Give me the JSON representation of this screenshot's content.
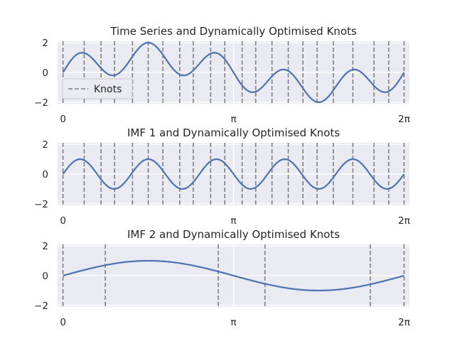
{
  "chart_data": [
    {
      "type": "line",
      "title": "Time Series and Dynamically Optimised Knots",
      "xlabel": "",
      "ylabel": "",
      "xlim": [
        -0.1,
        6.3832
      ],
      "ylim": [
        -2.1,
        2.1
      ],
      "xticks": [
        {
          "value": 0,
          "label": "0"
        },
        {
          "value": 3.1416,
          "label": "π"
        },
        {
          "value": 6.2832,
          "label": "2π"
        }
      ],
      "yticks": [
        {
          "value": 2,
          "label": "2"
        },
        {
          "value": 0,
          "label": "0"
        },
        {
          "value": -2,
          "label": "−2"
        }
      ],
      "signal": "sin(5x) + sin(x)",
      "x_samples": 401,
      "series": [
        {
          "name": "",
          "color": "#4c72b0"
        }
      ],
      "knots": [
        0.0,
        0.39,
        0.7,
        0.95,
        1.28,
        1.57,
        1.84,
        2.15,
        2.4,
        2.72,
        2.98,
        3.3,
        3.55,
        3.85,
        4.15,
        4.42,
        4.68,
        4.98,
        5.34,
        5.73,
        6.0,
        6.2832
      ],
      "knot_color": "#7f7f7f",
      "legend": {
        "label": "Knots",
        "placement": "lower left"
      },
      "grid": true,
      "background": "#eaeaf2"
    },
    {
      "type": "line",
      "title": "IMF 1 and Dynamically Optimised Knots",
      "xlabel": "",
      "ylabel": "",
      "xlim": [
        -0.1,
        6.3832
      ],
      "ylim": [
        -2.1,
        2.1
      ],
      "xticks": [
        {
          "value": 0,
          "label": "0"
        },
        {
          "value": 3.1416,
          "label": "π"
        },
        {
          "value": 6.2832,
          "label": "2π"
        }
      ],
      "yticks": [
        {
          "value": 2,
          "label": "2"
        },
        {
          "value": 0,
          "label": "0"
        },
        {
          "value": -2,
          "label": "−2"
        }
      ],
      "signal": "sin(5x)",
      "x_samples": 401,
      "series": [
        {
          "name": "",
          "color": "#4c72b0"
        }
      ],
      "knots": [
        0.0,
        0.39,
        0.7,
        0.95,
        1.28,
        1.57,
        1.84,
        2.15,
        2.4,
        2.72,
        2.98,
        3.3,
        3.55,
        3.85,
        4.15,
        4.42,
        4.68,
        4.98,
        5.34,
        5.73,
        6.0,
        6.2832
      ],
      "knot_color": "#7f7f7f",
      "grid": true,
      "background": "#eaeaf2"
    },
    {
      "type": "line",
      "title": "IMF 2 and Dynamically Optimised Knots",
      "xlabel": "",
      "ylabel": "",
      "xlim": [
        -0.1,
        6.3832
      ],
      "ylim": [
        -2.1,
        2.1
      ],
      "xticks": [
        {
          "value": 0,
          "label": "0"
        },
        {
          "value": 3.1416,
          "label": "π"
        },
        {
          "value": 6.2832,
          "label": "2π"
        }
      ],
      "yticks": [
        {
          "value": 2,
          "label": "2"
        },
        {
          "value": 0,
          "label": "0"
        },
        {
          "value": -2,
          "label": "−2"
        }
      ],
      "signal": "sin(x)",
      "x_samples": 401,
      "series": [
        {
          "name": "",
          "color": "#4c72b0"
        }
      ],
      "knots": [
        0.0,
        0.78,
        2.86,
        3.72,
        5.66,
        6.2832
      ],
      "knot_color": "#7f7f7f",
      "grid": true,
      "background": "#eaeaf2"
    }
  ]
}
